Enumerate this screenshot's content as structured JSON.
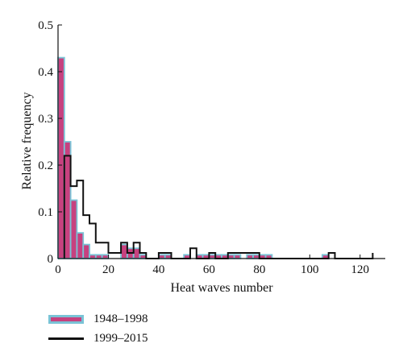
{
  "chart_data": {
    "type": "bar",
    "xlabel": "Heat waves number",
    "ylabel": "Relative frequency",
    "xlim": [
      0,
      130
    ],
    "ylim": [
      0,
      0.5
    ],
    "xticks": [
      0,
      20,
      40,
      60,
      80,
      100,
      120
    ],
    "xtick_labels": [
      "0",
      "20",
      "40",
      "60",
      "80",
      "100",
      "120"
    ],
    "yticks": [
      0,
      0.1,
      0.2,
      0.3,
      0.4,
      0.5
    ],
    "ytick_labels": [
      "0",
      "0.1",
      "0.2",
      "0.3",
      "0.4",
      "0.5"
    ],
    "legend_position": "bottom-left",
    "colors": {
      "bar_fill": "#c7417f",
      "bar_edge": "#7ac3d6",
      "line": "#111111"
    },
    "series": [
      {
        "name": "1948–1998",
        "kind": "bar",
        "bin_width": 2.5,
        "bins": [
          [
            0,
            0.43
          ],
          [
            2.5,
            0.25
          ],
          [
            5,
            0.125
          ],
          [
            7.5,
            0.055
          ],
          [
            10,
            0.03
          ],
          [
            12.5,
            0.008
          ],
          [
            15,
            0.008
          ],
          [
            17.5,
            0.008
          ],
          [
            20,
            0.0
          ],
          [
            22.5,
            0.0
          ],
          [
            25,
            0.03
          ],
          [
            27.5,
            0.022
          ],
          [
            30,
            0.022
          ],
          [
            32.5,
            0.008
          ],
          [
            40,
            0.008
          ],
          [
            42.5,
            0.008
          ],
          [
            50,
            0.008
          ],
          [
            55,
            0.008
          ],
          [
            57.5,
            0.008
          ],
          [
            60,
            0.008
          ],
          [
            62.5,
            0.008
          ],
          [
            65,
            0.008
          ],
          [
            67.5,
            0.008
          ],
          [
            70,
            0.008
          ],
          [
            75,
            0.008
          ],
          [
            77.5,
            0.008
          ],
          [
            80,
            0.008
          ],
          [
            82.5,
            0.008
          ],
          [
            105,
            0.008
          ]
        ]
      },
      {
        "name": "1999–2015",
        "kind": "step",
        "points": [
          [
            2.5,
            0
          ],
          [
            2.5,
            0.22
          ],
          [
            5,
            0.22
          ],
          [
            5,
            0.155
          ],
          [
            7.5,
            0.155
          ],
          [
            7.5,
            0.167
          ],
          [
            10,
            0.167
          ],
          [
            10,
            0.093
          ],
          [
            12.5,
            0.093
          ],
          [
            12.5,
            0.075
          ],
          [
            15,
            0.075
          ],
          [
            15,
            0.034
          ],
          [
            20,
            0.034
          ],
          [
            20,
            0.012
          ],
          [
            25,
            0.012
          ],
          [
            25,
            0.034
          ],
          [
            27.5,
            0.034
          ],
          [
            27.5,
            0.012
          ],
          [
            30,
            0.012
          ],
          [
            30,
            0.034
          ],
          [
            32.5,
            0.034
          ],
          [
            32.5,
            0.012
          ],
          [
            35,
            0.012
          ],
          [
            35,
            0.0
          ],
          [
            40,
            0.0
          ],
          [
            40,
            0.012
          ],
          [
            45,
            0.012
          ],
          [
            45,
            0.0
          ],
          [
            52.5,
            0.0
          ],
          [
            52.5,
            0.022
          ],
          [
            55,
            0.022
          ],
          [
            55,
            0.0
          ],
          [
            60,
            0.0
          ],
          [
            60,
            0.012
          ],
          [
            62.5,
            0.012
          ],
          [
            62.5,
            0.0
          ],
          [
            67.5,
            0.0
          ],
          [
            67.5,
            0.012
          ],
          [
            80,
            0.012
          ],
          [
            80,
            0.0
          ],
          [
            107.5,
            0.0
          ],
          [
            107.5,
            0.012
          ],
          [
            110,
            0.012
          ],
          [
            110,
            0.0
          ],
          [
            125,
            0.0
          ],
          [
            125,
            0.012
          ]
        ]
      }
    ]
  }
}
